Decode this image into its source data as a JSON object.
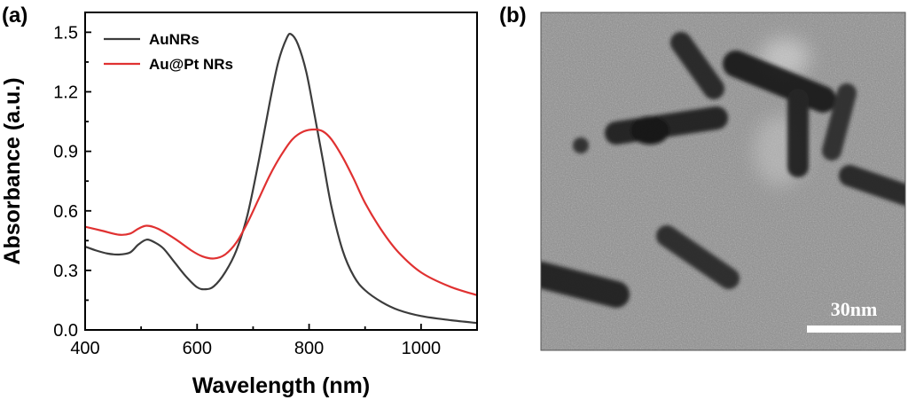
{
  "panels": {
    "a_label": "(a)",
    "b_label": "(b)"
  },
  "chart_data": {
    "type": "line",
    "xlabel": "Wavelength (nm)",
    "ylabel": "Absorbance (a.u.)",
    "xlim": [
      400,
      1100
    ],
    "ylim": [
      0,
      1.6
    ],
    "xticks": [
      400,
      600,
      800,
      1000
    ],
    "xtick_labels": [
      "400",
      "600",
      "800",
      "1000"
    ],
    "yticks": [
      0,
      0.3,
      0.6,
      0.9,
      1.2,
      1.5
    ],
    "ytick_labels": [
      "0.0",
      "0.3",
      "0.6",
      "0.9",
      "1.2",
      "1.5"
    ],
    "grid": false,
    "legend_position": "top-left",
    "series": [
      {
        "name": "AuNRs",
        "color": "#3c3c3c",
        "points": [
          [
            400,
            0.42
          ],
          [
            420,
            0.4
          ],
          [
            440,
            0.385
          ],
          [
            460,
            0.38
          ],
          [
            480,
            0.39
          ],
          [
            495,
            0.43
          ],
          [
            510,
            0.455
          ],
          [
            525,
            0.44
          ],
          [
            540,
            0.41
          ],
          [
            560,
            0.34
          ],
          [
            580,
            0.27
          ],
          [
            600,
            0.215
          ],
          [
            615,
            0.205
          ],
          [
            630,
            0.22
          ],
          [
            650,
            0.29
          ],
          [
            670,
            0.4
          ],
          [
            690,
            0.58
          ],
          [
            710,
            0.85
          ],
          [
            730,
            1.15
          ],
          [
            745,
            1.35
          ],
          [
            760,
            1.47
          ],
          [
            768,
            1.49
          ],
          [
            780,
            1.44
          ],
          [
            795,
            1.3
          ],
          [
            810,
            1.08
          ],
          [
            825,
            0.85
          ],
          [
            840,
            0.62
          ],
          [
            860,
            0.4
          ],
          [
            880,
            0.27
          ],
          [
            900,
            0.2
          ],
          [
            930,
            0.14
          ],
          [
            960,
            0.1
          ],
          [
            1000,
            0.07
          ],
          [
            1050,
            0.05
          ],
          [
            1100,
            0.035
          ]
        ]
      },
      {
        "name": "Au@Pt NRs",
        "color": "#e03131",
        "points": [
          [
            400,
            0.52
          ],
          [
            430,
            0.5
          ],
          [
            460,
            0.48
          ],
          [
            480,
            0.485
          ],
          [
            495,
            0.51
          ],
          [
            510,
            0.525
          ],
          [
            530,
            0.51
          ],
          [
            560,
            0.46
          ],
          [
            590,
            0.4
          ],
          [
            610,
            0.37
          ],
          [
            630,
            0.36
          ],
          [
            650,
            0.38
          ],
          [
            670,
            0.44
          ],
          [
            690,
            0.54
          ],
          [
            710,
            0.66
          ],
          [
            730,
            0.78
          ],
          [
            750,
            0.88
          ],
          [
            770,
            0.96
          ],
          [
            790,
            1.0
          ],
          [
            810,
            1.01
          ],
          [
            825,
            1.0
          ],
          [
            840,
            0.96
          ],
          [
            860,
            0.87
          ],
          [
            880,
            0.76
          ],
          [
            900,
            0.64
          ],
          [
            930,
            0.5
          ],
          [
            960,
            0.39
          ],
          [
            1000,
            0.29
          ],
          [
            1050,
            0.22
          ],
          [
            1100,
            0.175
          ]
        ]
      }
    ]
  },
  "image_panel": {
    "scale_bar_label": "30nm"
  }
}
